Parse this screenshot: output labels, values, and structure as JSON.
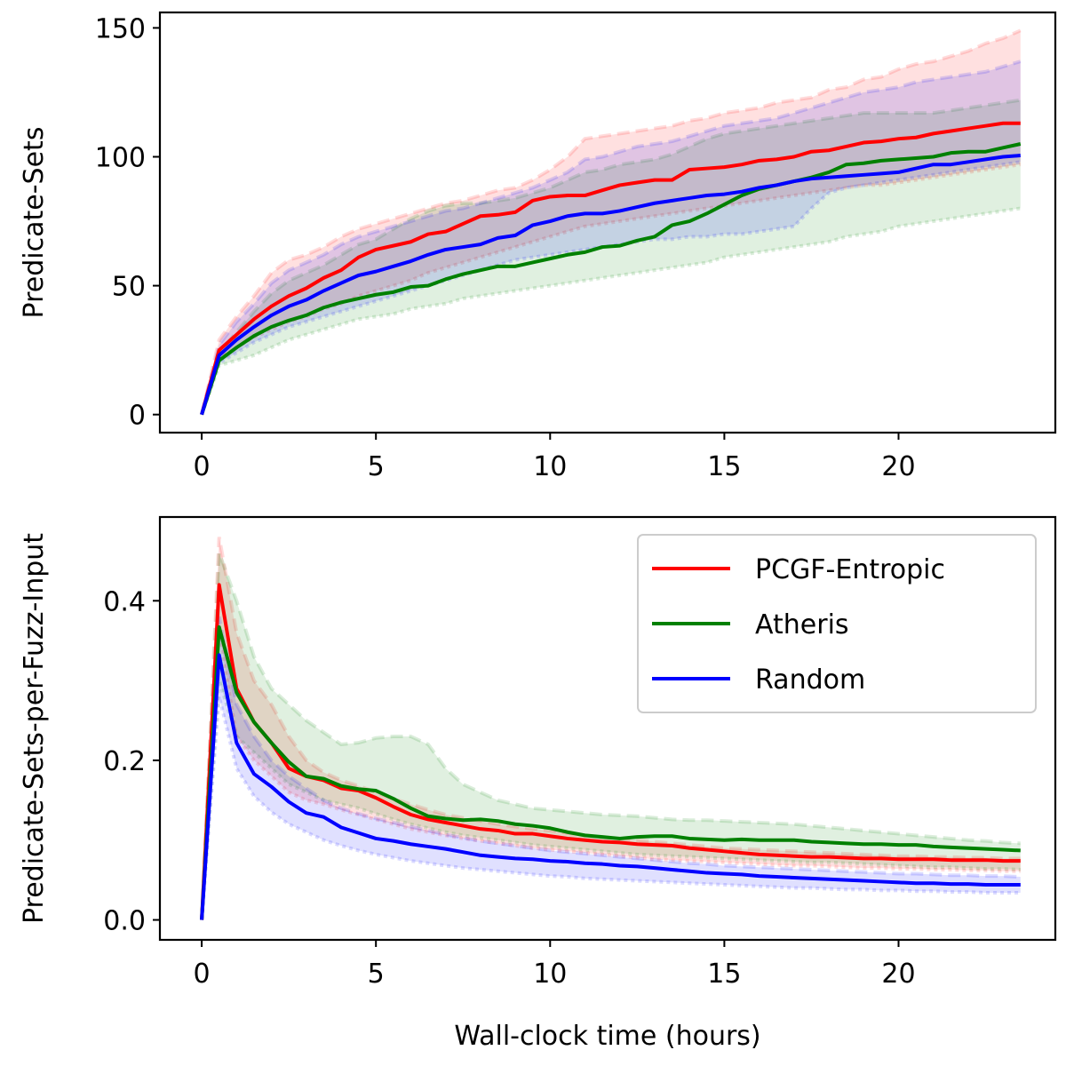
{
  "chart_data": [
    {
      "type": "line",
      "title": "",
      "xlabel": "",
      "ylabel": "Predicate-Sets",
      "xlim": [
        -1.2,
        24.5
      ],
      "ylim": [
        -7,
        156
      ],
      "xticks": [
        0,
        5,
        10,
        15,
        20
      ],
      "yticks": [
        0,
        50,
        100,
        150
      ],
      "xtick_labels": [
        "0",
        "5",
        "10",
        "15",
        "20"
      ],
      "ytick_labels": [
        "0",
        "50",
        "100",
        "150"
      ],
      "grid": false,
      "legend": null,
      "x": [
        0,
        0.5,
        1,
        1.5,
        2,
        2.5,
        3,
        3.5,
        4,
        4.5,
        5,
        5.5,
        6,
        6.5,
        7,
        7.5,
        8,
        8.5,
        9,
        9.5,
        10,
        10.5,
        11,
        11.5,
        12,
        12.5,
        13,
        13.5,
        14,
        14.5,
        15,
        15.5,
        16,
        16.5,
        17,
        17.5,
        18,
        18.5,
        19,
        19.5,
        20,
        20.5,
        21,
        21.5,
        22,
        22.5,
        23,
        23.5
      ],
      "series": [
        {
          "name": "PCGF-Entropic",
          "color": "#ff0000",
          "values": [
            0,
            25,
            31,
            37,
            42,
            46,
            49,
            53,
            56,
            61,
            64,
            65.5,
            67,
            70,
            71,
            74,
            77,
            77.5,
            78.5,
            83,
            84.5,
            85,
            85,
            87,
            89,
            90,
            91,
            91,
            95,
            95.5,
            96,
            97,
            98.5,
            99,
            100,
            102,
            102.5,
            104,
            105.5,
            106,
            107,
            107.5,
            109,
            110,
            111,
            112,
            113,
            113
          ],
          "upper": [
            0,
            29,
            38,
            46,
            55,
            60,
            62,
            65,
            69,
            72,
            74,
            76,
            78,
            80,
            82,
            83,
            85,
            87,
            88,
            91,
            95,
            100,
            107,
            108,
            109,
            110,
            111,
            112,
            114,
            115,
            117,
            118,
            119,
            121,
            122,
            123,
            126,
            127,
            130,
            131,
            134,
            136,
            137,
            139,
            141,
            144,
            146,
            149
          ],
          "lower": [
            0,
            22,
            26,
            30,
            33,
            36,
            38,
            41,
            43,
            46,
            48,
            50,
            52,
            55,
            57,
            59,
            61,
            63,
            65,
            67,
            69,
            71,
            73,
            74,
            75,
            76,
            77,
            78,
            79,
            80,
            81,
            82,
            83,
            84,
            85,
            86,
            87,
            88,
            89,
            89,
            90,
            91,
            92,
            93,
            94,
            95,
            96,
            97
          ]
        },
        {
          "name": "Atheris",
          "color": "#008000",
          "values": [
            0,
            21,
            26,
            30.5,
            34,
            36.5,
            38.5,
            41.5,
            43.5,
            45,
            46.5,
            47.5,
            49.5,
            50,
            52.5,
            54.5,
            56,
            57.5,
            57.5,
            59,
            60.5,
            62,
            63,
            65,
            65.5,
            67.5,
            69,
            73.5,
            75,
            78,
            81.5,
            85,
            87.5,
            89,
            90.5,
            92,
            94,
            97,
            97.5,
            98.5,
            99,
            99.5,
            100,
            101.5,
            102,
            102,
            103.5,
            105
          ],
          "upper": [
            0,
            24,
            32,
            40,
            47,
            52,
            55,
            58,
            62,
            66,
            68,
            72,
            76,
            79,
            81,
            82,
            82,
            83,
            84,
            86,
            88,
            91,
            94,
            95,
            97,
            98,
            99,
            101,
            104,
            107,
            109,
            110,
            111,
            112,
            113,
            114,
            115,
            116,
            117,
            117,
            117,
            117,
            117,
            118,
            119,
            120,
            121,
            122
          ],
          "lower": [
            0,
            19,
            21,
            23,
            26,
            29,
            31,
            33,
            35,
            37,
            38,
            39,
            41,
            42,
            43,
            45,
            46,
            47,
            48,
            49,
            50,
            51,
            52,
            53,
            54,
            55,
            56,
            57,
            58,
            59,
            61,
            62,
            63,
            64,
            65,
            66,
            67,
            69,
            70,
            71,
            73,
            74,
            75,
            76,
            77,
            78,
            79,
            80
          ]
        },
        {
          "name": "Random",
          "color": "#0000ff",
          "values": [
            0,
            23,
            29,
            34,
            38.5,
            42,
            44.5,
            48,
            51,
            54,
            55.5,
            57.5,
            59.5,
            62,
            64,
            65,
            66,
            68.5,
            69.5,
            73.5,
            75,
            77,
            78,
            78,
            79,
            80.5,
            82,
            83,
            84,
            85,
            85.5,
            86.5,
            88,
            89,
            90.5,
            91.5,
            92,
            92.5,
            93,
            93.5,
            94,
            95.5,
            97,
            97,
            98,
            99,
            100,
            100.5
          ],
          "upper": [
            0,
            27,
            36,
            43,
            51,
            56,
            59,
            62,
            66,
            69,
            71,
            73,
            75,
            77,
            79,
            80,
            82,
            84,
            86,
            88,
            91,
            94,
            99,
            100,
            102,
            104,
            105,
            106,
            108,
            110,
            112,
            113,
            114,
            115,
            117,
            119,
            121,
            123,
            125,
            126,
            127,
            129,
            130,
            131,
            132,
            133,
            135,
            137
          ],
          "lower": [
            0,
            20,
            24,
            28,
            31,
            34,
            36,
            38,
            40,
            42,
            44,
            46,
            48,
            50,
            52,
            54,
            56,
            58,
            60,
            61,
            62,
            63,
            64,
            65,
            66,
            67,
            68,
            68,
            69,
            69,
            70,
            70,
            71,
            72,
            73,
            80,
            86,
            88,
            89,
            90,
            91,
            92,
            93,
            94,
            95,
            96,
            97,
            98
          ]
        }
      ]
    },
    {
      "type": "line",
      "title": "",
      "xlabel": "Wall-clock time (hours)",
      "ylabel": "Predicate-Sets-per-Fuzz-Input",
      "xlim": [
        -1.2,
        24.5
      ],
      "ylim": [
        -0.025,
        0.505
      ],
      "xticks": [
        0,
        5,
        10,
        15,
        20
      ],
      "yticks": [
        0.0,
        0.2,
        0.4
      ],
      "xtick_labels": [
        "0",
        "5",
        "10",
        "15",
        "20"
      ],
      "ytick_labels": [
        "0.0",
        "0.2",
        "0.4"
      ],
      "grid": false,
      "legend": "top-right",
      "x": [
        0,
        0.5,
        1,
        1.5,
        2,
        2.5,
        3,
        3.5,
        4,
        4.5,
        5,
        5.5,
        6,
        6.5,
        7,
        7.5,
        8,
        8.5,
        9,
        9.5,
        10,
        10.5,
        11,
        11.5,
        12,
        12.5,
        13,
        13.5,
        14,
        14.5,
        15,
        15.5,
        16,
        16.5,
        17,
        17.5,
        18,
        18.5,
        19,
        19.5,
        20,
        20.5,
        21,
        21.5,
        22,
        22.5,
        23,
        23.5
      ],
      "series": [
        {
          "name": "PCGF-Entropic",
          "color": "#ff0000",
          "values": [
            0,
            0.42,
            0.29,
            0.248,
            0.222,
            0.19,
            0.18,
            0.175,
            0.165,
            0.162,
            0.153,
            0.142,
            0.132,
            0.126,
            0.122,
            0.118,
            0.114,
            0.112,
            0.108,
            0.108,
            0.105,
            0.102,
            0.1,
            0.098,
            0.097,
            0.095,
            0.094,
            0.093,
            0.09,
            0.088,
            0.086,
            0.084,
            0.082,
            0.081,
            0.08,
            0.079,
            0.079,
            0.078,
            0.077,
            0.077,
            0.076,
            0.076,
            0.076,
            0.075,
            0.075,
            0.075,
            0.074,
            0.074
          ],
          "upper": [
            0,
            0.48,
            0.36,
            0.3,
            0.27,
            0.23,
            0.2,
            0.185,
            0.175,
            0.168,
            0.16,
            0.152,
            0.145,
            0.138,
            0.132,
            0.128,
            0.124,
            0.12,
            0.117,
            0.114,
            0.112,
            0.109,
            0.106,
            0.104,
            0.102,
            0.1,
            0.098,
            0.096,
            0.094,
            0.092,
            0.09,
            0.089,
            0.088,
            0.087,
            0.086,
            0.085,
            0.084,
            0.083,
            0.082,
            0.081,
            0.08,
            0.08,
            0.079,
            0.079,
            0.078,
            0.078,
            0.077,
            0.077
          ],
          "lower": [
            0,
            0.36,
            0.23,
            0.2,
            0.18,
            0.16,
            0.15,
            0.145,
            0.138,
            0.132,
            0.126,
            0.12,
            0.114,
            0.11,
            0.106,
            0.102,
            0.099,
            0.096,
            0.093,
            0.09,
            0.088,
            0.086,
            0.084,
            0.082,
            0.08,
            0.078,
            0.076,
            0.075,
            0.074,
            0.073,
            0.072,
            0.071,
            0.07,
            0.069,
            0.068,
            0.068,
            0.067,
            0.066,
            0.065,
            0.065,
            0.064,
            0.064,
            0.063,
            0.063,
            0.062,
            0.062,
            0.061,
            0.061
          ]
        },
        {
          "name": "Atheris",
          "color": "#008000",
          "values": [
            0,
            0.367,
            0.285,
            0.248,
            0.222,
            0.198,
            0.18,
            0.177,
            0.168,
            0.164,
            0.162,
            0.152,
            0.14,
            0.13,
            0.127,
            0.125,
            0.126,
            0.124,
            0.12,
            0.118,
            0.115,
            0.11,
            0.106,
            0.104,
            0.102,
            0.104,
            0.105,
            0.105,
            0.102,
            0.101,
            0.1,
            0.101,
            0.1,
            0.1,
            0.1,
            0.098,
            0.097,
            0.096,
            0.095,
            0.095,
            0.094,
            0.094,
            0.092,
            0.091,
            0.09,
            0.089,
            0.088,
            0.087
          ],
          "upper": [
            0,
            0.46,
            0.4,
            0.33,
            0.29,
            0.27,
            0.25,
            0.235,
            0.22,
            0.222,
            0.228,
            0.23,
            0.23,
            0.22,
            0.19,
            0.17,
            0.16,
            0.15,
            0.145,
            0.14,
            0.138,
            0.136,
            0.134,
            0.132,
            0.131,
            0.13,
            0.128,
            0.126,
            0.125,
            0.125,
            0.124,
            0.123,
            0.122,
            0.121,
            0.12,
            0.118,
            0.116,
            0.114,
            0.112,
            0.11,
            0.108,
            0.106,
            0.104,
            0.102,
            0.1,
            0.099,
            0.097,
            0.096
          ],
          "lower": [
            0,
            0.3,
            0.23,
            0.21,
            0.19,
            0.17,
            0.16,
            0.15,
            0.145,
            0.14,
            0.133,
            0.126,
            0.12,
            0.115,
            0.11,
            0.106,
            0.103,
            0.1,
            0.097,
            0.094,
            0.092,
            0.09,
            0.088,
            0.086,
            0.084,
            0.082,
            0.081,
            0.08,
            0.079,
            0.078,
            0.077,
            0.076,
            0.075,
            0.074,
            0.073,
            0.072,
            0.072,
            0.071,
            0.07,
            0.069,
            0.068,
            0.067,
            0.066,
            0.066,
            0.065,
            0.064,
            0.064,
            0.063
          ]
        },
        {
          "name": "Random",
          "color": "#0000ff",
          "values": [
            0,
            0.332,
            0.222,
            0.183,
            0.167,
            0.148,
            0.134,
            0.129,
            0.116,
            0.109,
            0.102,
            0.099,
            0.095,
            0.092,
            0.089,
            0.085,
            0.081,
            0.079,
            0.077,
            0.076,
            0.074,
            0.073,
            0.071,
            0.07,
            0.068,
            0.067,
            0.065,
            0.063,
            0.061,
            0.059,
            0.058,
            0.057,
            0.055,
            0.054,
            0.053,
            0.052,
            0.051,
            0.05,
            0.049,
            0.048,
            0.047,
            0.046,
            0.046,
            0.045,
            0.045,
            0.044,
            0.044,
            0.044
          ],
          "upper": [
            0,
            0.38,
            0.27,
            0.23,
            0.2,
            0.18,
            0.165,
            0.15,
            0.14,
            0.133,
            0.127,
            0.122,
            0.117,
            0.112,
            0.107,
            0.103,
            0.099,
            0.096,
            0.093,
            0.09,
            0.087,
            0.085,
            0.083,
            0.081,
            0.079,
            0.077,
            0.075,
            0.073,
            0.071,
            0.07,
            0.068,
            0.067,
            0.066,
            0.065,
            0.064,
            0.063,
            0.062,
            0.061,
            0.06,
            0.059,
            0.058,
            0.058,
            0.057,
            0.056,
            0.056,
            0.055,
            0.055,
            0.054
          ],
          "lower": [
            0,
            0.28,
            0.19,
            0.155,
            0.135,
            0.12,
            0.11,
            0.1,
            0.093,
            0.087,
            0.082,
            0.078,
            0.074,
            0.071,
            0.068,
            0.065,
            0.063,
            0.061,
            0.059,
            0.057,
            0.055,
            0.054,
            0.052,
            0.051,
            0.05,
            0.049,
            0.048,
            0.047,
            0.046,
            0.045,
            0.044,
            0.043,
            0.042,
            0.041,
            0.04,
            0.04,
            0.039,
            0.038,
            0.038,
            0.037,
            0.037,
            0.036,
            0.036,
            0.035,
            0.035,
            0.034,
            0.034,
            0.034
          ]
        }
      ]
    }
  ]
}
